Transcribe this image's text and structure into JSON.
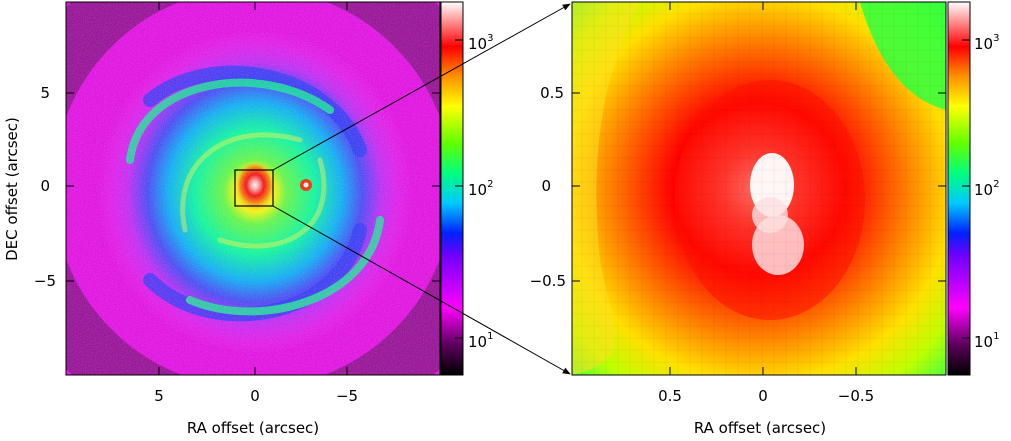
{
  "left_panel": {
    "xlabel": "RA offset (arcsec)",
    "ylabel": "DEC offset (arcsec)",
    "xticks": [
      "5",
      "0",
      "−5"
    ],
    "yticks": [
      "5",
      "0",
      "−5"
    ],
    "colorbar": {
      "base": [
        "10",
        "10",
        "10"
      ],
      "exponents": [
        "3",
        "2",
        "1"
      ]
    }
  },
  "right_panel": {
    "xlabel": "RA offset (arcsec)",
    "xticks": [
      "0.5",
      "0",
      "−0.5"
    ],
    "yticks": [
      "0.5",
      "0",
      "−0.5"
    ],
    "colorbar": {
      "base": [
        "10",
        "10",
        "10"
      ],
      "exponents": [
        "3",
        "2",
        "1"
      ]
    }
  },
  "colors": {
    "background": "#ff00ff",
    "arms": "#00ff66",
    "peak": "#ff0000",
    "core": "#ffffff"
  }
}
